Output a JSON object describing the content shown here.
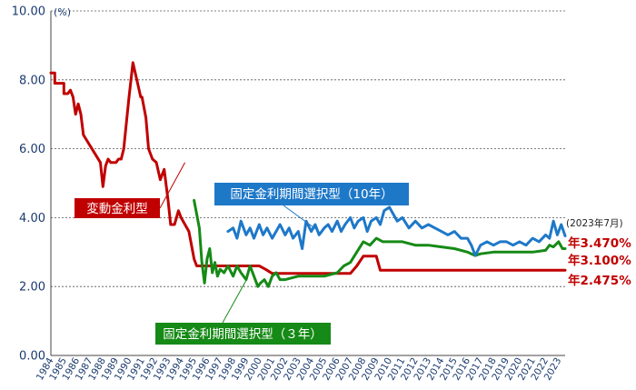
{
  "chart_data": {
    "type": "line",
    "unit_label": "(%)",
    "ylim": [
      0,
      10
    ],
    "yticks": [
      "0.00",
      "2.00",
      "4.00",
      "6.00",
      "8.00",
      "10.00"
    ],
    "x_labels": [
      "1984",
      "1985",
      "1986",
      "1987",
      "1988",
      "1989",
      "1990",
      "1991",
      "1992",
      "1993",
      "1994",
      "1995",
      "1996",
      "1997",
      "1998",
      "1999",
      "2000",
      "2001",
      "2002",
      "2003",
      "2004",
      "2005",
      "2006",
      "2007",
      "2008",
      "2009",
      "2010",
      "2011",
      "2012",
      "2013",
      "2014",
      "2015",
      "2016",
      "2017",
      "2018",
      "2019",
      "2020",
      "2021",
      "2022",
      "2023"
    ],
    "grid": "horizontal-dashed",
    "note_label": "(2023年7月)",
    "series": [
      {
        "name": "変動金利型",
        "color": "#c00000",
        "x": [
          1984.0,
          1984.3,
          1984.3,
          1985.0,
          1985.0,
          1985.3,
          1985.5,
          1985.7,
          1985.9,
          1986.1,
          1986.3,
          1986.5,
          1987.8,
          1988.0,
          1988.2,
          1988.4,
          1988.6,
          1989.0,
          1989.2,
          1989.4,
          1989.6,
          1990.0,
          1990.3,
          1990.6,
          1990.9,
          1991.0,
          1991.3,
          1991.5,
          1991.8,
          1992.1,
          1992.4,
          1992.7,
          1993.0,
          1993.2,
          1993.5,
          1993.8,
          1994.0,
          1994.3,
          1994.6,
          1994.9,
          1995.0,
          1995.2,
          1995.5,
          1995.7,
          1996.0,
          2000.0,
          2000.5,
          2001.0,
          2007.0,
          2007.5,
          2008.0,
          2009.0,
          2009.3,
          2023.5
        ],
        "values": [
          8.2,
          8.2,
          7.9,
          7.9,
          7.6,
          7.6,
          7.7,
          7.5,
          7.0,
          7.3,
          7.0,
          6.4,
          5.6,
          4.9,
          5.5,
          5.7,
          5.6,
          5.6,
          5.7,
          5.7,
          6.0,
          7.5,
          8.5,
          8.0,
          7.5,
          7.5,
          6.9,
          6.0,
          5.7,
          5.6,
          5.1,
          5.4,
          4.5,
          3.8,
          3.8,
          4.2,
          4.0,
          3.8,
          3.6,
          3.0,
          2.8,
          2.6,
          2.6,
          2.6,
          2.6,
          2.6,
          2.5,
          2.38,
          2.38,
          2.6,
          2.88,
          2.88,
          2.475,
          2.475
        ]
      },
      {
        "name": "固定金利期間選択型（３年）",
        "color": "#168a16",
        "x": [
          1995.0,
          1995.4,
          1995.6,
          1995.8,
          1996.0,
          1996.2,
          1996.4,
          1996.6,
          1996.8,
          1997.0,
          1997.3,
          1997.6,
          1998.0,
          1998.3,
          1998.6,
          1999.0,
          1999.3,
          1999.6,
          1999.9,
          2000.1,
          2000.4,
          2000.7,
          2001.0,
          2001.3,
          2001.6,
          2002.0,
          2002.5,
          2003.0,
          2004.0,
          2005.0,
          2006.0,
          2006.5,
          2007.0,
          2007.5,
          2008.0,
          2008.5,
          2009.0,
          2009.5,
          2010.0,
          2011.0,
          2012.0,
          2013.0,
          2014.0,
          2015.0,
          2016.0,
          2016.3,
          2016.6,
          2017.0,
          2018.0,
          2019.0,
          2020.0,
          2021.0,
          2022.0,
          2022.3,
          2022.6,
          2023.0,
          2023.3,
          2023.5
        ],
        "values": [
          4.5,
          3.7,
          2.7,
          2.1,
          2.8,
          3.1,
          2.4,
          2.7,
          2.3,
          2.5,
          2.4,
          2.6,
          2.3,
          2.6,
          2.4,
          2.2,
          2.6,
          2.3,
          2.0,
          2.1,
          2.2,
          2.0,
          2.3,
          2.4,
          2.2,
          2.2,
          2.25,
          2.3,
          2.3,
          2.3,
          2.4,
          2.6,
          2.7,
          3.0,
          3.3,
          3.2,
          3.4,
          3.3,
          3.3,
          3.3,
          3.2,
          3.2,
          3.15,
          3.1,
          3.0,
          2.95,
          2.9,
          2.95,
          3.0,
          3.0,
          3.0,
          3.0,
          3.05,
          3.2,
          3.15,
          3.3,
          3.1,
          3.1
        ]
      },
      {
        "name": "固定金利期間選択型（10年）",
        "color": "#1e78c8",
        "x": [
          1997.6,
          1998.0,
          1998.3,
          1998.6,
          1999.0,
          1999.3,
          1999.6,
          2000.0,
          2000.3,
          2000.6,
          2001.0,
          2001.3,
          2001.6,
          2002.0,
          2002.3,
          2002.6,
          2003.0,
          2003.3,
          2003.6,
          2004.0,
          2004.3,
          2004.6,
          2005.0,
          2005.3,
          2005.6,
          2006.0,
          2006.3,
          2006.6,
          2007.0,
          2007.3,
          2007.6,
          2008.0,
          2008.3,
          2008.6,
          2009.0,
          2009.3,
          2009.6,
          2010.0,
          2010.3,
          2010.6,
          2011.0,
          2011.5,
          2012.0,
          2012.5,
          2013.0,
          2013.5,
          2014.0,
          2014.5,
          2015.0,
          2015.5,
          2016.0,
          2016.3,
          2016.6,
          2017.0,
          2017.5,
          2018.0,
          2018.5,
          2019.0,
          2019.5,
          2020.0,
          2020.5,
          2021.0,
          2021.5,
          2022.0,
          2022.3,
          2022.6,
          2022.9,
          2023.2,
          2023.5
        ],
        "values": [
          3.6,
          3.7,
          3.4,
          3.9,
          3.5,
          3.7,
          3.4,
          3.8,
          3.5,
          3.7,
          3.4,
          3.6,
          3.8,
          3.5,
          3.7,
          3.4,
          3.6,
          3.1,
          3.9,
          3.6,
          3.8,
          3.5,
          3.7,
          3.8,
          3.6,
          3.9,
          3.6,
          3.8,
          4.0,
          3.7,
          3.9,
          4.0,
          3.6,
          3.9,
          4.0,
          3.8,
          4.2,
          4.3,
          4.1,
          3.9,
          4.0,
          3.7,
          3.9,
          3.7,
          3.8,
          3.7,
          3.6,
          3.5,
          3.6,
          3.4,
          3.4,
          3.2,
          2.9,
          3.2,
          3.3,
          3.2,
          3.3,
          3.3,
          3.2,
          3.3,
          3.2,
          3.4,
          3.3,
          3.5,
          3.4,
          3.9,
          3.5,
          3.8,
          3.47
        ]
      }
    ],
    "end_labels": [
      {
        "text": "年3.470%",
        "value": 3.47
      },
      {
        "text": "年3.100%",
        "value": 3.1
      },
      {
        "text": "年2.475%",
        "value": 2.475
      }
    ],
    "series_labels": [
      {
        "text": "変動金利型",
        "series": 0,
        "box_color": "#c00000",
        "pointer_year": 1994.3,
        "pointer_value": 5.6
      },
      {
        "text": "固定金利期間選択型（10年）",
        "series": 2,
        "box_color": "#1e78c8",
        "pointer_year": 2004.6,
        "pointer_value": 3.6
      },
      {
        "text": "固定金利期間選択型（３年）",
        "series": 1,
        "box_color": "#168a16",
        "pointer_year": 1999.1,
        "pointer_value": 2.25
      }
    ]
  }
}
